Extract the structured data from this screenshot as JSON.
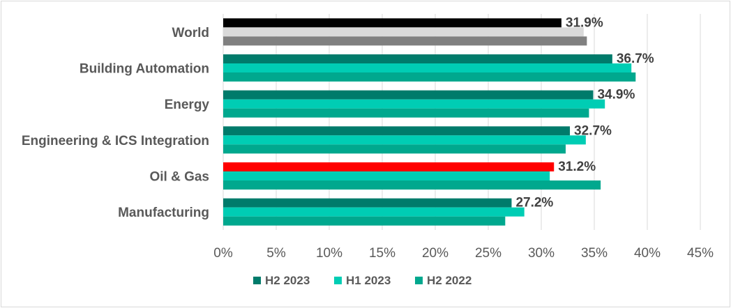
{
  "chart_data": {
    "type": "bar",
    "orientation": "horizontal",
    "categories": [
      "World",
      "Building Automation",
      "Energy",
      "Engineering & ICS Integration",
      "Oil & Gas",
      "Manufacturing"
    ],
    "series": [
      {
        "name": "H2 2023",
        "color": "#007b6b",
        "values": [
          31.9,
          36.7,
          34.9,
          32.7,
          31.2,
          27.2
        ]
      },
      {
        "name": "H1 2023",
        "color": "#00cdb4",
        "values": [
          34.0,
          38.5,
          36.0,
          34.2,
          30.8,
          28.4
        ]
      },
      {
        "name": "H2 2022",
        "color": "#00a88e",
        "values": [
          34.3,
          38.9,
          34.5,
          32.3,
          35.6,
          26.6
        ]
      }
    ],
    "bar_color_overrides": [
      {
        "category": "World",
        "colors": [
          "#000000",
          "#d9d9d9",
          "#808080"
        ]
      },
      {
        "category": "Oil & Gas",
        "series": "H2 2023",
        "color": "#ff0000"
      }
    ],
    "data_labels": [
      "31.9%",
      "36.7%",
      "34.9%",
      "32.7%",
      "31.2%",
      "27.2%"
    ],
    "xlim": [
      0,
      45
    ],
    "xticks": [
      "0%",
      "5%",
      "10%",
      "15%",
      "20%",
      "25%",
      "30%",
      "35%",
      "40%",
      "45%"
    ],
    "grid": true,
    "legend_position": "bottom",
    "title": "",
    "xlabel": "",
    "ylabel": ""
  }
}
